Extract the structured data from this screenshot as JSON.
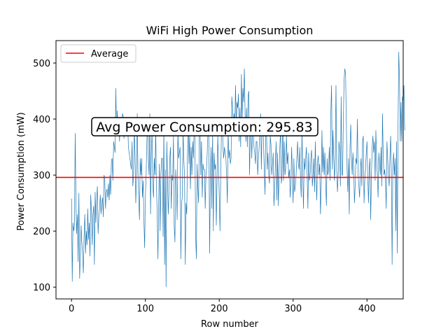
{
  "chart_data": {
    "type": "line",
    "title": "WiFi High Power Consumption",
    "xlabel": "Row number",
    "ylabel": "Power Consumption (mW)",
    "xlim": [
      -21,
      449
    ],
    "ylim": [
      79,
      540
    ],
    "xticks": [
      0,
      100,
      200,
      300,
      400
    ],
    "yticks": [
      100,
      200,
      300,
      400,
      500
    ],
    "grid": false,
    "legend": {
      "position": "top-left",
      "entries": [
        "Average"
      ]
    },
    "average": 295.83,
    "annotation": "Avg Power Consumption: 295.83",
    "colors": {
      "series": "#1f77b4",
      "average": "#ff0000"
    },
    "series": [
      {
        "y": [
          258,
          110,
          215,
          200,
          210,
          375,
          250,
          195,
          230,
          145,
          268,
          115,
          155,
          210,
          180,
          160,
          125,
          190,
          230,
          160,
          200,
          175,
          240,
          185,
          215,
          155,
          265,
          235,
          175,
          230,
          245,
          140,
          270,
          215,
          255,
          280,
          195,
          225,
          240,
          265,
          230,
          250,
          260,
          225,
          300,
          295,
          240,
          270,
          275,
          260,
          285,
          255,
          300,
          265,
          325,
          330,
          290,
          360,
          350,
          340,
          455,
          370,
          415,
          370,
          400,
          360,
          395,
          385,
          380,
          410,
          405,
          365,
          395,
          370,
          385,
          380,
          400,
          350,
          340,
          330,
          320,
          310,
          360,
          280,
          300,
          380,
          340,
          250,
          300,
          410,
          300,
          260,
          220,
          330,
          300,
          330,
          260,
          290,
          220,
          170,
          260,
          300,
          360,
          400,
          330,
          300,
          410,
          230,
          340,
          380,
          280,
          260,
          330,
          300,
          380,
          280,
          230,
          150,
          250,
          320,
          200,
          300,
          330,
          330,
          190,
          390,
          140,
          310,
          100,
          360,
          290,
          230,
          270,
          330,
          350,
          240,
          300,
          290,
          370,
          210,
          180,
          310,
          280,
          220,
          380,
          330,
          340,
          350,
          150,
          250,
          260,
          380,
          330,
          300,
          140,
          250,
          230,
          340,
          400,
          320,
          370,
          275,
          350,
          300,
          360,
          330,
          390,
          380,
          195,
          150,
          320,
          280,
          250,
          370,
          390,
          300,
          360,
          260,
          320,
          310,
          310,
          240,
          300,
          315,
          350,
          390,
          360,
          160,
          300,
          350,
          240,
          380,
          200,
          340,
          310,
          320,
          210,
          290,
          370,
          320,
          260,
          200,
          300,
          380,
          400,
          350,
          330,
          350,
          340,
          330,
          300,
          250,
          380,
          330,
          345,
          320,
          330,
          440,
          420,
          390,
          410,
          380,
          460,
          390,
          430,
          420,
          445,
          360,
          420,
          350,
          480,
          400,
          455,
          430,
          490,
          410,
          360,
          420,
          350,
          440,
          450,
          300,
          370,
          400,
          330,
          380,
          380,
          350,
          340,
          320,
          360,
          360,
          300,
          330,
          350,
          385,
          410,
          310,
          395,
          390,
          355,
          305,
          265,
          395,
          380,
          310,
          340,
          300,
          285,
          370,
          355,
          300,
          320,
          340,
          245,
          275,
          320,
          360,
          255,
          340,
          245,
          300,
          350,
          380,
          285,
          300,
          400,
          290,
          360,
          300,
          315,
          370,
          320,
          340,
          295,
          310,
          260,
          290,
          350,
          300,
          250,
          330,
          270,
          280,
          300,
          330,
          360,
          320,
          310,
          350,
          290,
          260,
          380,
          300,
          240,
          330,
          310,
          330,
          350,
          300,
          240,
          340,
          290,
          300,
          330,
          345,
          280,
          300,
          330,
          270,
          360,
          300,
          255,
          320,
          335,
          300,
          320,
          230,
          280,
          380,
          305,
          350,
          300,
          340,
          290,
          245,
          330,
          300,
          310,
          350,
          290,
          410,
          460,
          310,
          380,
          330,
          290,
          330,
          460,
          310,
          270,
          300,
          360,
          345,
          280,
          440,
          300,
          300,
          400,
          470,
          490,
          480,
          400,
          310,
          270,
          330,
          230,
          350,
          390,
          330,
          300,
          340,
          310,
          250,
          280,
          330,
          320,
          400,
          300,
          280,
          260,
          310,
          330,
          280,
          360,
          370,
          250,
          290,
          310,
          340,
          360,
          300,
          250,
          310,
          330,
          220,
          300,
          350,
          370,
          340,
          360,
          290,
          380,
          330,
          300,
          260,
          340,
          320,
          300,
          350,
          280,
          410,
          330,
          300,
          310,
          290,
          240,
          360,
          330,
          300,
          280,
          330,
          370,
          300,
          140,
          320,
          340,
          300,
          330,
          200,
          360,
          160,
          380,
          520,
          470,
          360,
          430,
          360,
          440,
          430,
          460,
          380
        ]
      }
    ]
  }
}
